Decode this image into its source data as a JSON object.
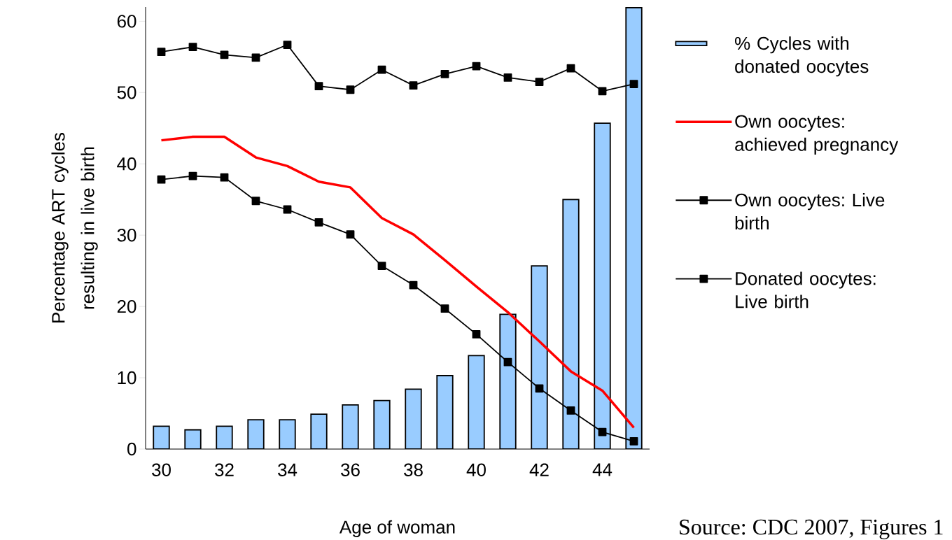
{
  "chart_data": {
    "type": "line",
    "categories": [
      "30",
      null,
      "32",
      null,
      "34",
      null,
      "36",
      null,
      "38",
      null,
      "40",
      null,
      "42",
      null,
      "44",
      null
    ],
    "series": [
      {
        "name": "% Cycles with donated oocytes",
        "type": "bar",
        "color": "#99ccff",
        "values": [
          3.2,
          2.7,
          3.2,
          4.1,
          4.1,
          4.9,
          6.2,
          6.8,
          8.4,
          10.3,
          13.1,
          18.9,
          25.7,
          35.0,
          45.7,
          61.9
        ]
      },
      {
        "name": "Own oocytes: achieved pregnancy",
        "color": "#ff0000",
        "marker": "none",
        "values": [
          43.3,
          43.8,
          43.8,
          40.9,
          39.7,
          37.5,
          36.7,
          32.4,
          30.1,
          26.5,
          22.8,
          19.2,
          15.1,
          10.9,
          8.2,
          3.0
        ]
      },
      {
        "name": "Own oocytes: Live birth",
        "color": "#000000",
        "marker": "square",
        "values": [
          37.8,
          38.3,
          38.1,
          34.8,
          33.6,
          31.8,
          30.1,
          25.7,
          23.0,
          19.7,
          16.1,
          12.2,
          8.5,
          5.4,
          2.4,
          1.1
        ]
      },
      {
        "name": "Donated oocytes: Live birth",
        "color": "#000000",
        "marker": "square",
        "values": [
          55.7,
          56.4,
          55.3,
          54.9,
          56.7,
          50.9,
          50.4,
          53.2,
          51.0,
          52.6,
          53.7,
          52.1,
          51.5,
          53.4,
          50.2,
          51.2
        ]
      }
    ],
    "ylim": [
      0,
      62
    ],
    "yticks": [
      0,
      10,
      20,
      30,
      40,
      50,
      60
    ],
    "xlabel": "Age of woman",
    "ylabel": "Percentage ART cycles resulting in live birth",
    "annotations": [
      "Source: CDC 2007, Figures 1"
    ],
    "legend": "right",
    "grid": false
  }
}
